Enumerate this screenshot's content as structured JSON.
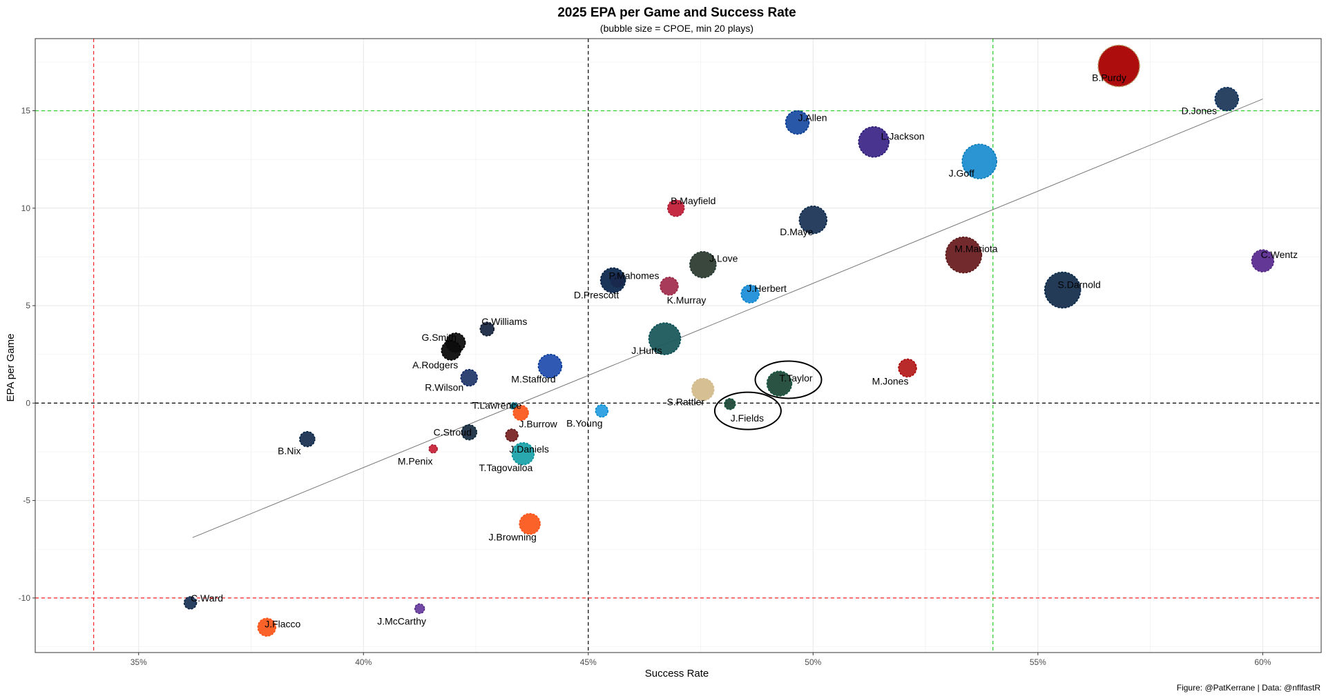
{
  "chart_data": {
    "type": "scatter",
    "title": "2025 EPA per Game and Success Rate",
    "subtitle": "(bubble size = CPOE, min 20 plays)",
    "xlabel": "Success Rate",
    "ylabel": "EPA per Game",
    "caption": "Figure: @PatKerrane | Data: @nflfastR",
    "xlim": [
      0.327,
      0.613
    ],
    "ylim": [
      -12.8,
      18.7
    ],
    "x_ticks": [
      0.35,
      0.4,
      0.45,
      0.5,
      0.55,
      0.6
    ],
    "x_tick_labels": [
      "35%",
      "40%",
      "45%",
      "50%",
      "55%",
      "60%"
    ],
    "y_ticks": [
      -10,
      -5,
      0,
      5,
      10,
      15
    ],
    "y_tick_labels": [
      "-10",
      "-5",
      "0",
      "5",
      "10",
      "15"
    ],
    "grid": true,
    "reference_lines": [
      {
        "axis": "x",
        "value": 0.34,
        "color": "#ff2020",
        "style": "dashed"
      },
      {
        "axis": "x",
        "value": 0.45,
        "color": "#000000",
        "style": "dashed"
      },
      {
        "axis": "x",
        "value": 0.54,
        "color": "#22cc22",
        "style": "dashed"
      },
      {
        "axis": "y",
        "value": -10,
        "color": "#ff2020",
        "style": "dashed"
      },
      {
        "axis": "y",
        "value": 0,
        "color": "#000000",
        "style": "dashed"
      },
      {
        "axis": "y",
        "value": 15,
        "color": "#22cc22",
        "style": "dashed"
      }
    ],
    "trend_line": {
      "x": [
        0.362,
        0.6
      ],
      "y": [
        -6.9,
        15.6
      ],
      "color": "#777777"
    },
    "highlight_ellipses": [
      {
        "x": 0.4945,
        "y": 1.2,
        "label": "T.Taylor"
      },
      {
        "x": 0.4855,
        "y": -0.4,
        "label": "J.Fields"
      }
    ],
    "points": [
      {
        "label": "B.Purdy",
        "x": 0.568,
        "y": 17.3,
        "size": 30,
        "color": "#aa0000",
        "ring": "#b3995d"
      },
      {
        "label": "D.Jones",
        "x": 0.592,
        "y": 15.6,
        "size": 17,
        "color": "#203a5c",
        "ring": "#002c5f"
      },
      {
        "label": "J.Allen",
        "x": 0.4965,
        "y": 14.4,
        "size": 17,
        "color": "#1e4fa3",
        "ring": "#00338d"
      },
      {
        "label": "L.Jackson",
        "x": 0.5135,
        "y": 13.4,
        "size": 22,
        "color": "#3f2a8a",
        "ring": "#241773"
      },
      {
        "label": "J.Goff",
        "x": 0.537,
        "y": 12.4,
        "size": 25,
        "color": "#1f8fd0",
        "ring": "#0076b6"
      },
      {
        "label": "B.Mayfield",
        "x": 0.4695,
        "y": 10.0,
        "size": 12,
        "color": "#c3203a",
        "ring": "#a71930"
      },
      {
        "label": "D.Maye",
        "x": 0.5,
        "y": 9.4,
        "size": 20,
        "color": "#1f3657",
        "ring": "#002244"
      },
      {
        "label": "M.Mariota",
        "x": 0.5335,
        "y": 7.6,
        "size": 26,
        "color": "#6b1f22",
        "ring": "#5a1414"
      },
      {
        "label": "C.Wentz",
        "x": 0.6,
        "y": 7.3,
        "size": 16,
        "color": "#5b2c90",
        "ring": "#4f2683"
      },
      {
        "label": "J.Love",
        "x": 0.4755,
        "y": 7.1,
        "size": 19,
        "color": "#2e3d33",
        "ring": "#203731"
      },
      {
        "label": "P.Mahomes",
        "x": 0.4565,
        "y": 6.3,
        "size": 10,
        "color": "#e31837",
        "ring": "#c8102e"
      },
      {
        "label": "D.Prescott",
        "x": 0.4555,
        "y": 6.3,
        "size": 18,
        "color": "#0e2a4e",
        "ring": "#041e42"
      },
      {
        "label": "K.Murray",
        "x": 0.468,
        "y": 6.0,
        "size": 13,
        "color": "#a33050",
        "ring": "#97233f"
      },
      {
        "label": "S.Darnold",
        "x": 0.5555,
        "y": 5.8,
        "size": 26,
        "color": "#18304f",
        "ring": "#002244"
      },
      {
        "label": "J.Herbert",
        "x": 0.486,
        "y": 5.6,
        "size": 13,
        "color": "#1f8fd8",
        "ring": "#0080c6"
      },
      {
        "label": "C.Williams",
        "x": 0.4275,
        "y": 3.8,
        "size": 10,
        "color": "#1b2a44",
        "ring": "#0b162a"
      },
      {
        "label": "G.Smith",
        "x": 0.4205,
        "y": 3.1,
        "size": 14,
        "color": "#111111",
        "ring": "#000000"
      },
      {
        "label": "J.Hurts",
        "x": 0.467,
        "y": 3.3,
        "size": 23,
        "color": "#1e5a5c",
        "ring": "#004c54"
      },
      {
        "label": "A.Rodgers",
        "x": 0.4195,
        "y": 2.7,
        "size": 14,
        "color": "#0d0d0d",
        "ring": "#000000"
      },
      {
        "label": "M.Stafford",
        "x": 0.4415,
        "y": 1.9,
        "size": 17,
        "color": "#2550b0",
        "ring": "#003594"
      },
      {
        "label": "M.Jones",
        "x": 0.521,
        "y": 1.8,
        "size": 13,
        "color": "#b51f1f",
        "ring": "#aa0000"
      },
      {
        "label": "R.Wilson",
        "x": 0.4235,
        "y": 1.3,
        "size": 12,
        "color": "#263b6e",
        "ring": "#0b2265"
      },
      {
        "label": "T.Taylor",
        "x": 0.4925,
        "y": 1.0,
        "size": 18,
        "color": "#1f4a3a",
        "ring": "#125740"
      },
      {
        "label": "S.Rattler",
        "x": 0.4755,
        "y": 0.7,
        "size": 16,
        "color": "#d3bc8d",
        "ring": "#d3bc8d"
      },
      {
        "label": "J.Fields",
        "x": 0.4815,
        "y": -0.05,
        "size": 8,
        "color": "#1f4a3a",
        "ring": "#125740"
      },
      {
        "label": "T.Lawrence",
        "x": 0.4335,
        "y": -0.15,
        "size": 5,
        "color": "#006778",
        "ring": "#006778"
      },
      {
        "label": "B.Young",
        "x": 0.453,
        "y": -0.4,
        "size": 9,
        "color": "#2a9fe0",
        "ring": "#0085ca"
      },
      {
        "label": "J.Burrow",
        "x": 0.435,
        "y": -0.5,
        "size": 11,
        "color": "#fb5a1e",
        "ring": "#fb4f14"
      },
      {
        "label": "C.Stroud",
        "x": 0.4235,
        "y": -1.5,
        "size": 11,
        "color": "#1c2f45",
        "ring": "#03202f"
      },
      {
        "label": "J.Daniels",
        "x": 0.433,
        "y": -1.65,
        "size": 9,
        "color": "#7a2626",
        "ring": "#5a1414"
      },
      {
        "label": "B.Nix",
        "x": 0.3875,
        "y": -1.85,
        "size": 11,
        "color": "#1b3352",
        "ring": "#002244"
      },
      {
        "label": "T.Tagovailoa",
        "x": 0.4355,
        "y": -2.6,
        "size": 16,
        "color": "#1fa3ab",
        "ring": "#008e97"
      },
      {
        "label": "M.Penix",
        "x": 0.4155,
        "y": -2.35,
        "size": 6,
        "color": "#c8253a",
        "ring": "#a71930"
      },
      {
        "label": "J.Browning",
        "x": 0.437,
        "y": -6.2,
        "size": 15,
        "color": "#fb5a1e",
        "ring": "#fb4f14"
      },
      {
        "label": "C.Ward",
        "x": 0.3615,
        "y": -10.25,
        "size": 9,
        "color": "#1f3657",
        "ring": "#0c2340"
      },
      {
        "label": "J.McCarthy",
        "x": 0.4125,
        "y": -10.55,
        "size": 7,
        "color": "#6a3fa0",
        "ring": "#4f2683"
      },
      {
        "label": "J.Flacco",
        "x": 0.3785,
        "y": -11.5,
        "size": 13,
        "color": "#fb5a1e",
        "ring": "#fb4f14"
      }
    ]
  }
}
